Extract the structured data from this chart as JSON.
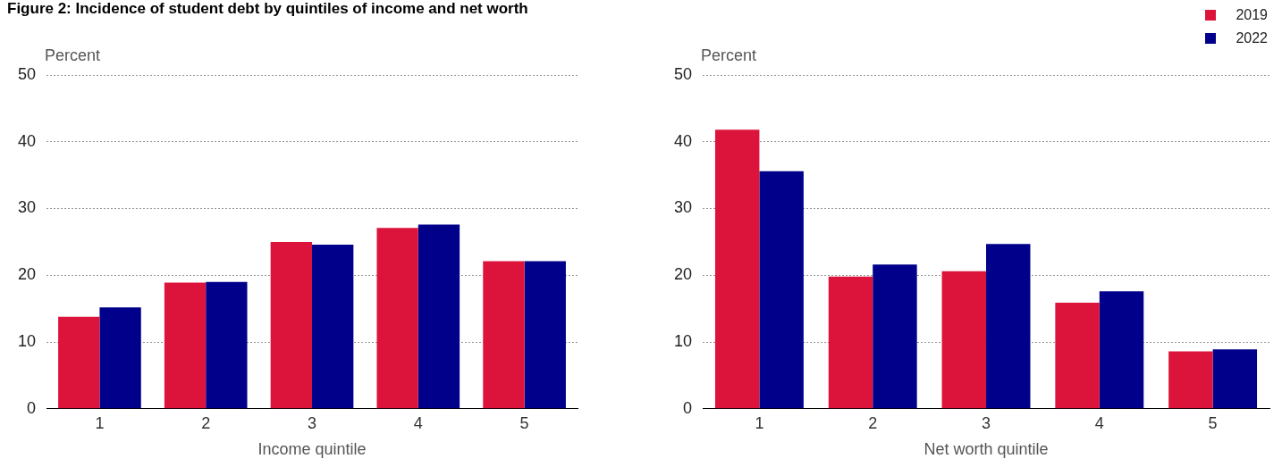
{
  "chart_data": [
    {
      "type": "bar",
      "title": "Figure 2: Incidence of student debt by quintiles of income and net worth",
      "ylabel": "Percent",
      "xlabel": "Income quintile",
      "categories": [
        "1",
        "2",
        "3",
        "4",
        "5"
      ],
      "series": [
        {
          "color": "#dc143c",
          "values": [
            13.8,
            18.9,
            25.0,
            27.1,
            22.1
          ]
        },
        {
          "color": "#00008b",
          "values": [
            15.2,
            19.0,
            24.6,
            27.6,
            22.1
          ]
        }
      ],
      "ylim": [
        0,
        50
      ],
      "yticks": [
        0,
        10,
        20,
        30,
        40,
        50
      ],
      "grid": "y",
      "legend": false
    },
    {
      "type": "bar",
      "ylabel": "Percent",
      "xlabel": "Net worth quintile",
      "categories": [
        "1",
        "2",
        "3",
        "4",
        "5"
      ],
      "series": [
        {
          "name": "2019",
          "color": "#dc143c",
          "values": [
            41.8,
            19.8,
            20.6,
            15.9,
            8.6
          ]
        },
        {
          "name": "2022",
          "color": "#00008b",
          "values": [
            35.6,
            21.6,
            24.7,
            17.6,
            8.9
          ]
        }
      ],
      "ylim": [
        0,
        50
      ],
      "yticks": [
        0,
        10,
        20,
        30,
        40,
        50
      ],
      "grid": "y",
      "legend": "top right"
    }
  ]
}
